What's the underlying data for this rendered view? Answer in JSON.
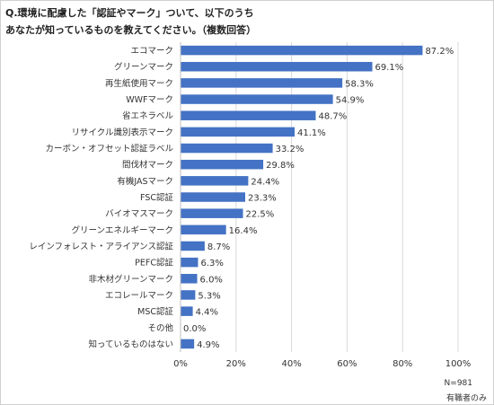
{
  "title_line1": "Q.環境に配慮した「認証やマーク」ついて、以下のうち",
  "title_line2": "あなたが知っているものを教えてください。（複数回答）",
  "note_n": "N=981",
  "note_filter": "有職者のみ",
  "chart_data": {
    "type": "bar",
    "orientation": "horizontal",
    "categories": [
      "エコマーク",
      "グリーンマーク",
      "再生紙使用マーク",
      "WWFマーク",
      "省エネラベル",
      "リサイクル識別表示マーク",
      "カーボン・オフセット認証ラベル",
      "間伐材マーク",
      "有機JASマーク",
      "FSC認証",
      "バイオマスマーク",
      "グリーンエネルギーマーク",
      "レインフォレスト・アライアンス認証",
      "PEFC認証",
      "非木材グリーンマーク",
      "エコレールマーク",
      "MSC認証",
      "その他",
      "知っているものはない"
    ],
    "values": [
      87.2,
      69.1,
      58.3,
      54.9,
      48.7,
      41.1,
      33.2,
      29.8,
      24.4,
      23.3,
      22.5,
      16.4,
      8.7,
      6.3,
      6.0,
      5.3,
      4.4,
      0.0,
      4.9
    ],
    "value_labels": [
      "87.2%",
      "69.1%",
      "58.3%",
      "54.9%",
      "48.7%",
      "41.1%",
      "33.2%",
      "29.8%",
      "24.4%",
      "23.3%",
      "22.5%",
      "16.4%",
      "8.7%",
      "6.3%",
      "6.0%",
      "5.3%",
      "4.4%",
      "0.0%",
      "4.9%"
    ],
    "xlim": [
      0,
      100
    ],
    "xticks": [
      0,
      20,
      40,
      60,
      80,
      100
    ],
    "xtick_labels": [
      "0%",
      "20%",
      "40%",
      "60%",
      "80%",
      "100%"
    ],
    "bar_color": "#4472c4",
    "grid": true
  }
}
